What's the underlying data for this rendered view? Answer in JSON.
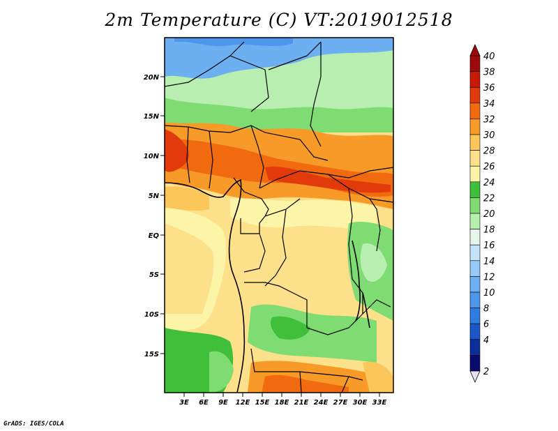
{
  "title": "2m Temperature (C) VT:2019012518",
  "footer": "GrADS: IGES/COLA",
  "map": {
    "y_labels": [
      "20N",
      "15N",
      "10N",
      "5N",
      "EQ",
      "5S",
      "10S",
      "15S"
    ],
    "x_labels": [
      "3E",
      "6E",
      "9E",
      "12E",
      "15E",
      "18E",
      "21E",
      "24E",
      "27E",
      "30E",
      "33E"
    ]
  },
  "colorbar": {
    "levels": [
      "2",
      "4",
      "6",
      "8",
      "10",
      "12",
      "14",
      "16",
      "18",
      "20",
      "22",
      "24",
      "26",
      "28",
      "30",
      "32",
      "34",
      "36",
      "38",
      "40"
    ],
    "colors": [
      "#0a0a6e",
      "#0c2e9a",
      "#1d56c8",
      "#2f7ce2",
      "#4d96ec",
      "#6cb0f2",
      "#96cbf7",
      "#c2e3fa",
      "#e6f6ec",
      "#b8efb0",
      "#7fdc72",
      "#3fbf3a",
      "#fcf4a6",
      "#fde08a",
      "#fbc65a",
      "#f79a28",
      "#f26a10",
      "#e23a0a",
      "#c81a06",
      "#9e0a0a"
    ],
    "over_color": "#9e0a0a",
    "under_color": "#e6e0f5"
  }
}
